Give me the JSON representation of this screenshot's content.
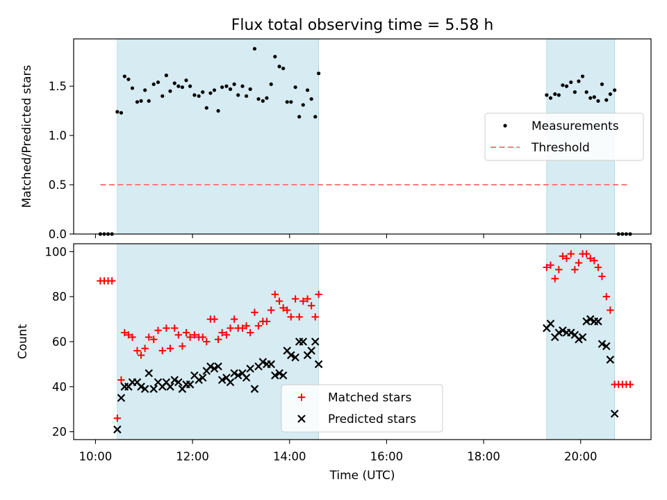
{
  "figure": {
    "title": "Flux total observing time = 5.58 h",
    "xlabel": "Time (UTC)",
    "x_ticks": [
      {
        "value": 10,
        "label": "10:00"
      },
      {
        "value": 12,
        "label": "12:00"
      },
      {
        "value": 14,
        "label": "14:00"
      },
      {
        "value": 16,
        "label": "16:00"
      },
      {
        "value": 18,
        "label": "18:00"
      },
      {
        "value": 20,
        "label": "20:00"
      }
    ],
    "xlim": [
      9.55,
      21.45
    ],
    "shaded_color": "#add8e6",
    "shaded_intervals": [
      [
        10.45,
        14.6
      ],
      [
        19.3,
        20.7
      ]
    ]
  },
  "chart_data": [
    {
      "type": "scatter",
      "ylabel": "Matched/Predicted stars",
      "ylim": [
        0,
        1.98
      ],
      "y_ticks": [
        {
          "value": 0,
          "label": "0.0"
        },
        {
          "value": 0.5,
          "label": "0.5"
        },
        {
          "value": 1.0,
          "label": "1.0"
        },
        {
          "value": 1.5,
          "label": "1.5"
        }
      ],
      "legend_position": "center-right",
      "series": [
        {
          "name": "Measurements",
          "color": "#000000",
          "marker": "dot",
          "points": [
            [
              10.1,
              0
            ],
            [
              10.18,
              0
            ],
            [
              10.26,
              0
            ],
            [
              10.34,
              0
            ],
            [
              10.45,
              1.24
            ],
            [
              10.53,
              1.23
            ],
            [
              10.6,
              1.6
            ],
            [
              10.68,
              1.57
            ],
            [
              10.76,
              1.48
            ],
            [
              10.86,
              1.34
            ],
            [
              10.94,
              1.35
            ],
            [
              11.02,
              1.46
            ],
            [
              11.1,
              1.35
            ],
            [
              11.2,
              1.52
            ],
            [
              11.29,
              1.54
            ],
            [
              11.38,
              1.4
            ],
            [
              11.46,
              1.61
            ],
            [
              11.54,
              1.45
            ],
            [
              11.63,
              1.53
            ],
            [
              11.71,
              1.5
            ],
            [
              11.79,
              1.49
            ],
            [
              11.87,
              1.56
            ],
            [
              11.95,
              1.5
            ],
            [
              12.04,
              1.41
            ],
            [
              12.13,
              1.4
            ],
            [
              12.21,
              1.44
            ],
            [
              12.29,
              1.28
            ],
            [
              12.37,
              1.43
            ],
            [
              12.45,
              1.46
            ],
            [
              12.53,
              1.25
            ],
            [
              12.61,
              1.49
            ],
            [
              12.7,
              1.5
            ],
            [
              12.78,
              1.47
            ],
            [
              12.86,
              1.52
            ],
            [
              12.94,
              1.41
            ],
            [
              13.03,
              1.5
            ],
            [
              13.11,
              1.4
            ],
            [
              13.19,
              1.47
            ],
            [
              13.28,
              1.88
            ],
            [
              13.36,
              1.37
            ],
            [
              13.45,
              1.35
            ],
            [
              13.53,
              1.38
            ],
            [
              13.62,
              1.52
            ],
            [
              13.7,
              1.8
            ],
            [
              13.79,
              1.7
            ],
            [
              13.87,
              1.68
            ],
            [
              13.95,
              1.34
            ],
            [
              14.03,
              1.34
            ],
            [
              14.12,
              1.49
            ],
            [
              14.2,
              1.19
            ],
            [
              14.28,
              1.31
            ],
            [
              14.37,
              1.46
            ],
            [
              14.45,
              1.37
            ],
            [
              14.53,
              1.19
            ],
            [
              14.6,
              1.63
            ],
            [
              19.3,
              1.41
            ],
            [
              19.38,
              1.38
            ],
            [
              19.47,
              1.42
            ],
            [
              19.55,
              1.41
            ],
            [
              19.63,
              1.51
            ],
            [
              19.71,
              1.5
            ],
            [
              19.8,
              1.54
            ],
            [
              19.88,
              1.44
            ],
            [
              19.96,
              1.55
            ],
            [
              20.04,
              1.6
            ],
            [
              20.12,
              1.44
            ],
            [
              20.2,
              1.38
            ],
            [
              20.28,
              1.39
            ],
            [
              20.36,
              1.35
            ],
            [
              20.44,
              1.52
            ],
            [
              20.53,
              1.36
            ],
            [
              20.61,
              1.42
            ],
            [
              20.7,
              1.46
            ],
            [
              20.78,
              0
            ],
            [
              20.86,
              0
            ],
            [
              20.94,
              0
            ],
            [
              21.02,
              0
            ]
          ]
        },
        {
          "name": "Threshold",
          "color": "#ff7a7a",
          "style": "dashed",
          "points": [
            [
              10.1,
              0.5
            ],
            [
              21.02,
              0.5
            ]
          ]
        }
      ]
    },
    {
      "type": "scatter",
      "ylabel": "Count",
      "xlabel": "Time (UTC)",
      "ylim": [
        16.5,
        103.5
      ],
      "y_ticks": [
        {
          "value": 20,
          "label": "20"
        },
        {
          "value": 40,
          "label": "40"
        },
        {
          "value": 60,
          "label": "60"
        },
        {
          "value": 80,
          "label": "80"
        },
        {
          "value": 100,
          "label": "100"
        }
      ],
      "legend_position": "bottom-center",
      "series": [
        {
          "name": "Matched stars",
          "color": "#ff0000",
          "marker": "plus",
          "points": [
            [
              10.1,
              87
            ],
            [
              10.18,
              87
            ],
            [
              10.26,
              87
            ],
            [
              10.34,
              87
            ],
            [
              10.45,
              26
            ],
            [
              10.53,
              43
            ],
            [
              10.6,
              64
            ],
            [
              10.68,
              63
            ],
            [
              10.76,
              62
            ],
            [
              10.86,
              56
            ],
            [
              10.94,
              54
            ],
            [
              11.02,
              57
            ],
            [
              11.1,
              62
            ],
            [
              11.2,
              61
            ],
            [
              11.29,
              65
            ],
            [
              11.38,
              56
            ],
            [
              11.46,
              66
            ],
            [
              11.54,
              57
            ],
            [
              11.63,
              66
            ],
            [
              11.71,
              63
            ],
            [
              11.79,
              58
            ],
            [
              11.87,
              64
            ],
            [
              11.95,
              62
            ],
            [
              12.04,
              63
            ],
            [
              12.13,
              62
            ],
            [
              12.21,
              62
            ],
            [
              12.29,
              60
            ],
            [
              12.37,
              70
            ],
            [
              12.45,
              70
            ],
            [
              12.53,
              61
            ],
            [
              12.61,
              64
            ],
            [
              12.7,
              63
            ],
            [
              12.78,
              66
            ],
            [
              12.86,
              70
            ],
            [
              12.94,
              66
            ],
            [
              13.03,
              66
            ],
            [
              13.11,
              67
            ],
            [
              13.19,
              64
            ],
            [
              13.28,
              73
            ],
            [
              13.36,
              67
            ],
            [
              13.45,
              69
            ],
            [
              13.53,
              69
            ],
            [
              13.62,
              74
            ],
            [
              13.7,
              81
            ],
            [
              13.79,
              78
            ],
            [
              13.87,
              75
            ],
            [
              13.95,
              74
            ],
            [
              14.03,
              71
            ],
            [
              14.12,
              79
            ],
            [
              14.2,
              71
            ],
            [
              14.28,
              78
            ],
            [
              14.37,
              79
            ],
            [
              14.45,
              76
            ],
            [
              14.53,
              71
            ],
            [
              14.6,
              81
            ],
            [
              19.3,
              93
            ],
            [
              19.38,
              94
            ],
            [
              19.47,
              88
            ],
            [
              19.55,
              92
            ],
            [
              19.63,
              98
            ],
            [
              19.71,
              97
            ],
            [
              19.8,
              99
            ],
            [
              19.88,
              92
            ],
            [
              19.96,
              95
            ],
            [
              20.04,
              99
            ],
            [
              20.12,
              99
            ],
            [
              20.2,
              97
            ],
            [
              20.28,
              96
            ],
            [
              20.36,
              93
            ],
            [
              20.44,
              89
            ],
            [
              20.53,
              80
            ],
            [
              20.61,
              74
            ],
            [
              20.7,
              41
            ],
            [
              20.78,
              41
            ],
            [
              20.86,
              41
            ],
            [
              20.94,
              41
            ],
            [
              21.02,
              41
            ]
          ]
        },
        {
          "name": "Predicted stars",
          "color": "#000000",
          "marker": "x",
          "points": [
            [
              10.45,
              21
            ],
            [
              10.53,
              35
            ],
            [
              10.6,
              40
            ],
            [
              10.68,
              40
            ],
            [
              10.76,
              42
            ],
            [
              10.86,
              42
            ],
            [
              10.94,
              40
            ],
            [
              11.02,
              39
            ],
            [
              11.1,
              46
            ],
            [
              11.2,
              39
            ],
            [
              11.29,
              42
            ],
            [
              11.38,
              40
            ],
            [
              11.46,
              42
            ],
            [
              11.54,
              40
            ],
            [
              11.63,
              43
            ],
            [
              11.71,
              42
            ],
            [
              11.79,
              39
            ],
            [
              11.87,
              41
            ],
            [
              11.95,
              41
            ],
            [
              12.04,
              45
            ],
            [
              12.13,
              43
            ],
            [
              12.21,
              44
            ],
            [
              12.29,
              47
            ],
            [
              12.37,
              49
            ],
            [
              12.45,
              48
            ],
            [
              12.53,
              49
            ],
            [
              12.61,
              43
            ],
            [
              12.7,
              44
            ],
            [
              12.78,
              42
            ],
            [
              12.86,
              46
            ],
            [
              12.94,
              45
            ],
            [
              13.03,
              46
            ],
            [
              13.11,
              44
            ],
            [
              13.19,
              48
            ],
            [
              13.28,
              39
            ],
            [
              13.36,
              49
            ],
            [
              13.45,
              51
            ],
            [
              13.53,
              50
            ],
            [
              13.62,
              50
            ],
            [
              13.7,
              45
            ],
            [
              13.79,
              46
            ],
            [
              13.87,
              45
            ],
            [
              13.95,
              56
            ],
            [
              14.03,
              54
            ],
            [
              14.12,
              53
            ],
            [
              14.2,
              60
            ],
            [
              14.28,
              60
            ],
            [
              14.37,
              54
            ],
            [
              14.45,
              56
            ],
            [
              14.53,
              60
            ],
            [
              14.6,
              50
            ],
            [
              19.3,
              66
            ],
            [
              19.38,
              68
            ],
            [
              19.47,
              62
            ],
            [
              19.55,
              64
            ],
            [
              19.63,
              65
            ],
            [
              19.71,
              64
            ],
            [
              19.8,
              64
            ],
            [
              19.88,
              63
            ],
            [
              19.96,
              61
            ],
            [
              20.04,
              62
            ],
            [
              20.12,
              69
            ],
            [
              20.2,
              70
            ],
            [
              20.28,
              69
            ],
            [
              20.36,
              69
            ],
            [
              20.44,
              59
            ],
            [
              20.53,
              58
            ],
            [
              20.61,
              52
            ],
            [
              20.7,
              28
            ]
          ]
        }
      ]
    }
  ]
}
